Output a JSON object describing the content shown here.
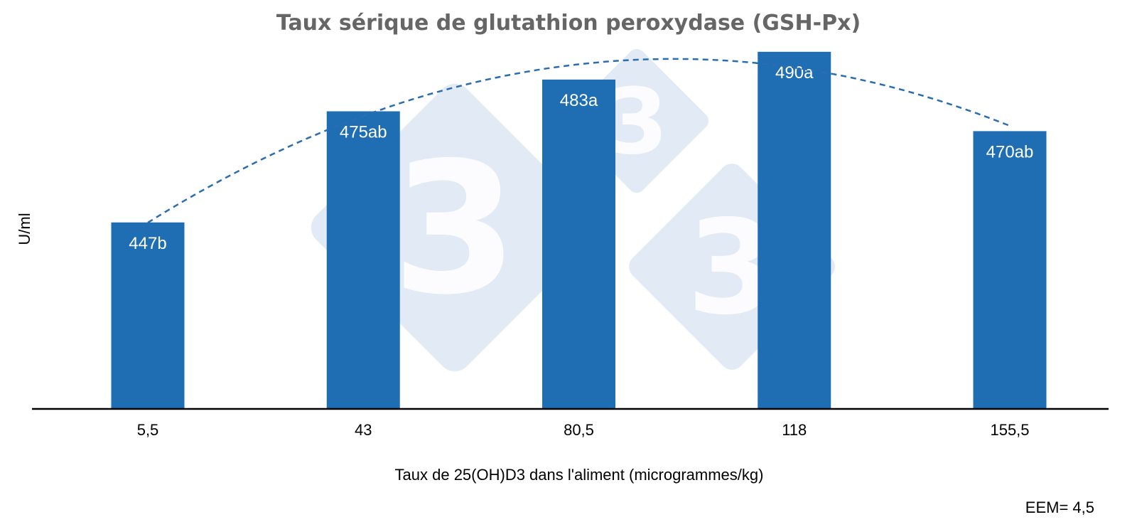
{
  "chart_data": {
    "type": "bar",
    "title": "Taux sérique de glutathion peroxydase (GSH-Px)",
    "xlabel": "Taux de 25(OH)D3 dans l'aliment (microgrammes/kg)",
    "ylabel": "U/ml",
    "categories": [
      "5,5",
      "43",
      "80,5",
      "118",
      "155,5"
    ],
    "values": [
      447,
      475,
      483,
      490,
      470
    ],
    "data_labels": [
      "447b",
      "475ab",
      "483a",
      "490a",
      "470ab"
    ],
    "ylim": [
      400,
      492.3
    ],
    "grid": false,
    "trendline": {
      "type": "polynomial",
      "order": 2,
      "style": "dashed",
      "color": "#2a6db0"
    },
    "bar_color": "#1f6db3",
    "annotation": "EEM= 4,5"
  },
  "watermark": {
    "text": "3",
    "color": "#c8d8ec"
  }
}
